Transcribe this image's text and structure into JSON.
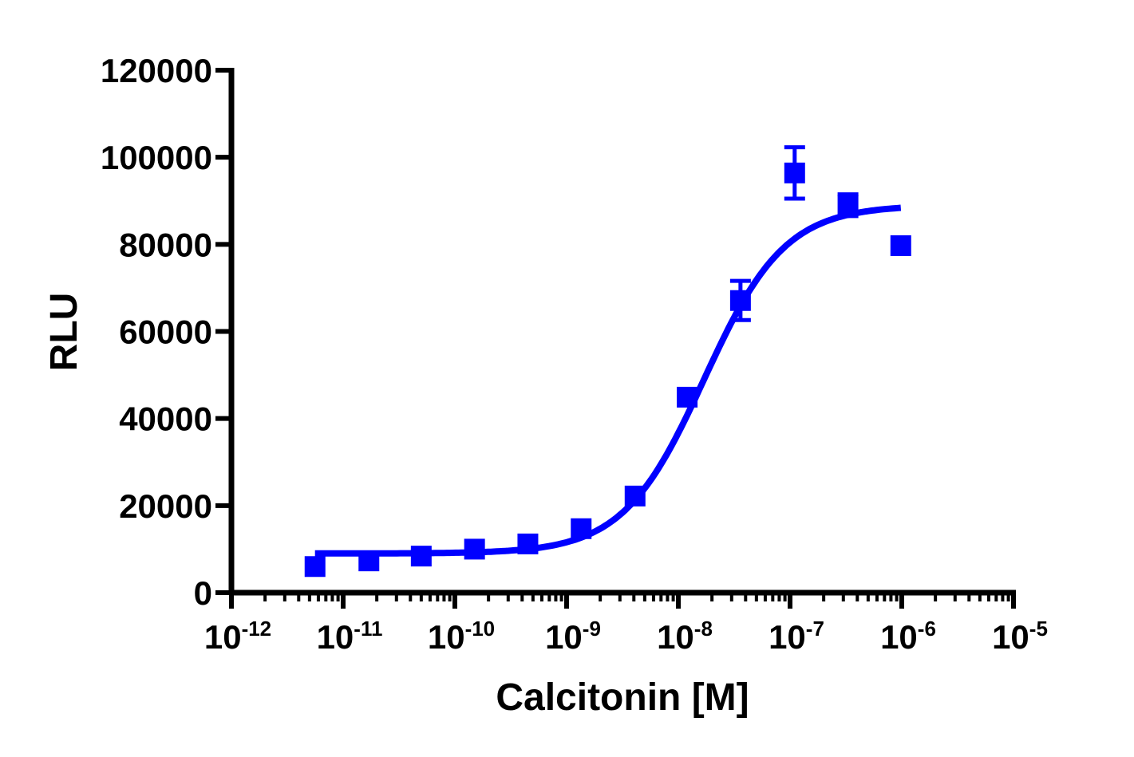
{
  "chart_data": {
    "type": "scatter",
    "subtype": "dose-response with sigmoidal fit",
    "title": "",
    "xlabel": "Calcitonin [M]",
    "ylabel": "RLU",
    "xscale": "log",
    "xlim": [
      1e-12,
      1e-05
    ],
    "ylim": [
      0,
      120000
    ],
    "x_tick_labels": [
      {
        "base": "10",
        "exp": "-12"
      },
      {
        "base": "10",
        "exp": "-11"
      },
      {
        "base": "10",
        "exp": "-10"
      },
      {
        "base": "10",
        "exp": "-9"
      },
      {
        "base": "10",
        "exp": "-8"
      },
      {
        "base": "10",
        "exp": "-7"
      },
      {
        "base": "10",
        "exp": "-6"
      },
      {
        "base": "10",
        "exp": "-5"
      }
    ],
    "y_tick_labels": [
      "0",
      "20000",
      "40000",
      "60000",
      "80000",
      "100000",
      "120000"
    ],
    "y_ticks": [
      0,
      20000,
      40000,
      60000,
      80000,
      100000,
      120000
    ],
    "grid": false,
    "legend": null,
    "series": [
      {
        "name": "Calcitonin",
        "color": "#0000ff",
        "marker": "square",
        "x": [
          5.6e-12,
          1.7e-11,
          5e-11,
          1.5e-10,
          4.5e-10,
          1.35e-09,
          4.1e-09,
          1.2e-08,
          3.6e-08,
          1.1e-07,
          3.3e-07,
          9.8e-07
        ],
        "y": [
          6000,
          7300,
          8400,
          10000,
          11200,
          14700,
          22200,
          44900,
          67100,
          96400,
          89000,
          79700
        ],
        "yerr": [
          0,
          0,
          0,
          0,
          0,
          0,
          0,
          0,
          4500,
          5900,
          2500,
          0
        ]
      }
    ],
    "fit": {
      "model": "4PL",
      "color": "#0000ff",
      "bottom": 9000,
      "top": 89000,
      "ec50": 1.7e-08,
      "hill": 1.2,
      "x_range": [
        5.6e-12,
        9.8e-07
      ]
    }
  },
  "colors": {
    "series": "#0000ff",
    "axis": "#000000",
    "background": "#ffffff"
  }
}
